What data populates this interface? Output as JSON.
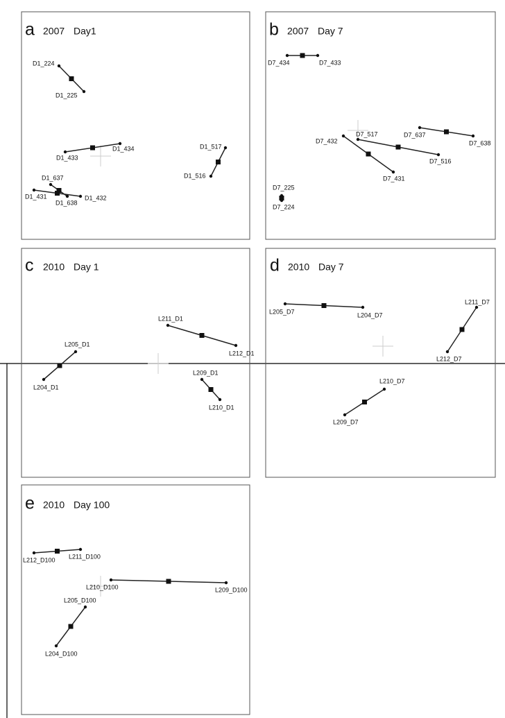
{
  "panels": [
    {
      "letter": "a",
      "year": "2007",
      "day": "Day1",
      "pairs": [
        [
          "D1_224",
          "D1_225"
        ],
        [
          "D1_433",
          "D1_434"
        ],
        [
          "D1_517",
          "D1_516"
        ],
        [
          "D1_431",
          "D1_432"
        ],
        [
          "D1_637",
          "D1_638"
        ]
      ]
    },
    {
      "letter": "b",
      "year": "2007",
      "day": "Day 7",
      "pairs": [
        [
          "D7_434",
          "D7_433"
        ],
        [
          "D7_432",
          "D7_431"
        ],
        [
          "D7_517",
          "D7_516"
        ],
        [
          "D7_637",
          "D7_638"
        ],
        [
          "D7_225",
          "D7_224"
        ]
      ]
    },
    {
      "letter": "c",
      "year": "2010",
      "day": "Day 1",
      "pairs": [
        [
          "L205_D1",
          "L204_D1"
        ],
        [
          "L211_D1",
          "L212_D1"
        ],
        [
          "L209_D1",
          "L210_D1"
        ]
      ]
    },
    {
      "letter": "d",
      "year": "2010",
      "day": "Day 7",
      "pairs": [
        [
          "L205_D7",
          "L204_D7"
        ],
        [
          "L211_D7",
          "L212_D7"
        ],
        [
          "L210_D7",
          "L209_D7"
        ]
      ]
    },
    {
      "letter": "e",
      "year": "2010",
      "day": "Day 100",
      "pairs": [
        [
          "L212_D100",
          "L211_D100"
        ],
        [
          "L210_D100",
          "L209_D100"
        ],
        [
          "L205_D100",
          "L204_D100"
        ]
      ]
    }
  ]
}
